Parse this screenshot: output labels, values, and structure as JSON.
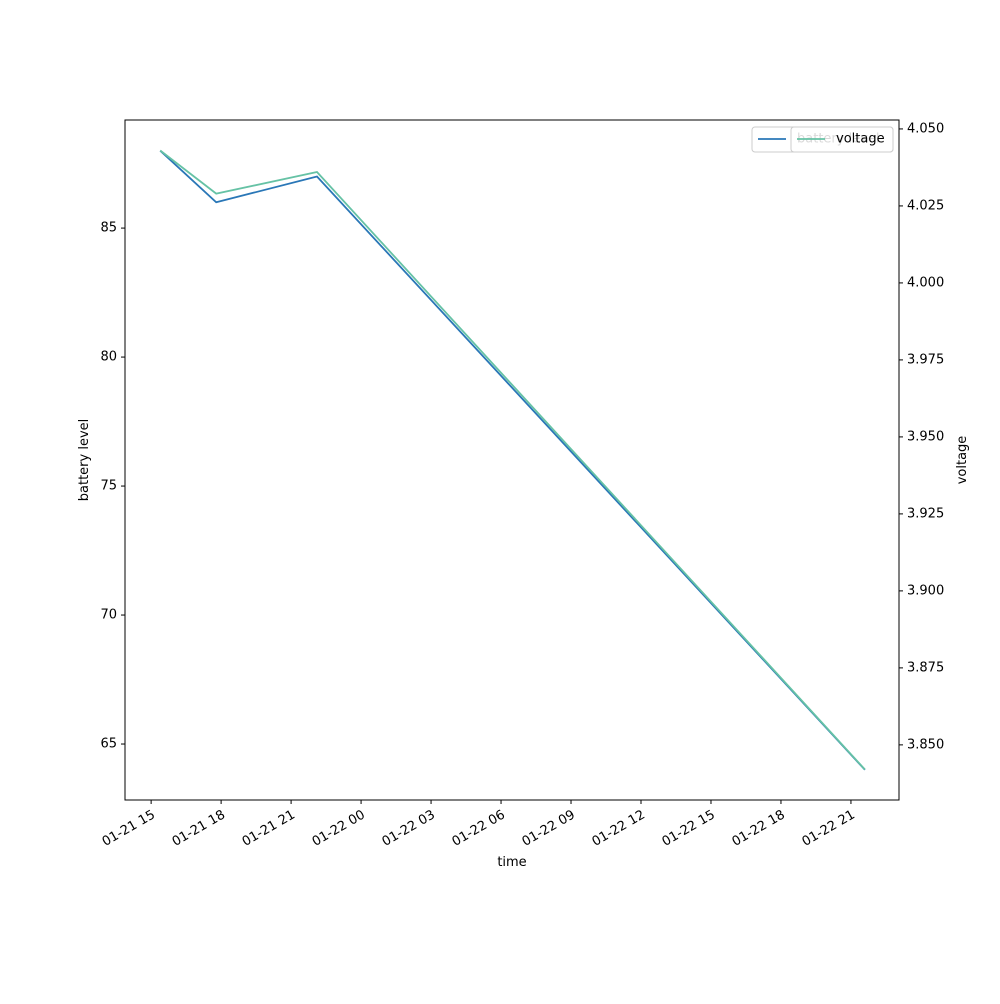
{
  "chart_data": {
    "type": "line",
    "x_label": "time",
    "y_label": "battery level",
    "y2_label": "voltage",
    "x": [
      15.39,
      17.79,
      22.11,
      45.6
    ],
    "xlim": [
      13.88,
      47.06
    ],
    "xticks": [
      {
        "value": 15,
        "label": "01-21 15"
      },
      {
        "value": 18,
        "label": "01-21 18"
      },
      {
        "value": 21,
        "label": "01-21 21"
      },
      {
        "value": 24,
        "label": "01-22 00"
      },
      {
        "value": 27,
        "label": "01-22 03"
      },
      {
        "value": 30,
        "label": "01-22 06"
      },
      {
        "value": 33,
        "label": "01-22 09"
      },
      {
        "value": 36,
        "label": "01-22 12"
      },
      {
        "value": 39,
        "label": "01-22 15"
      },
      {
        "value": 42,
        "label": "01-22 18"
      },
      {
        "value": 45,
        "label": "01-22 21"
      }
    ],
    "ylim": [
      62.83,
      89.19
    ],
    "yticks": [
      65,
      70,
      75,
      80,
      85
    ],
    "y2lim": [
      3.8321,
      4.0529
    ],
    "y2ticks": [
      {
        "value": 3.85,
        "label": "3.850"
      },
      {
        "value": 3.875,
        "label": "3.875"
      },
      {
        "value": 3.9,
        "label": "3.900"
      },
      {
        "value": 3.925,
        "label": "3.925"
      },
      {
        "value": 3.95,
        "label": "3.950"
      },
      {
        "value": 3.975,
        "label": "3.975"
      },
      {
        "value": 4.0,
        "label": "4.000"
      },
      {
        "value": 4.025,
        "label": "4.025"
      },
      {
        "value": 4.05,
        "label": "4.050"
      }
    ],
    "series": [
      {
        "name": "battery level",
        "color": "#2a77b7",
        "values": [
          88,
          86,
          87,
          64
        ]
      },
      {
        "name": "voltage",
        "color": "#66c2a5",
        "axis": "y2",
        "values": [
          4.043,
          4.029,
          4.036,
          3.842
        ]
      }
    ],
    "legend": "upper right"
  }
}
